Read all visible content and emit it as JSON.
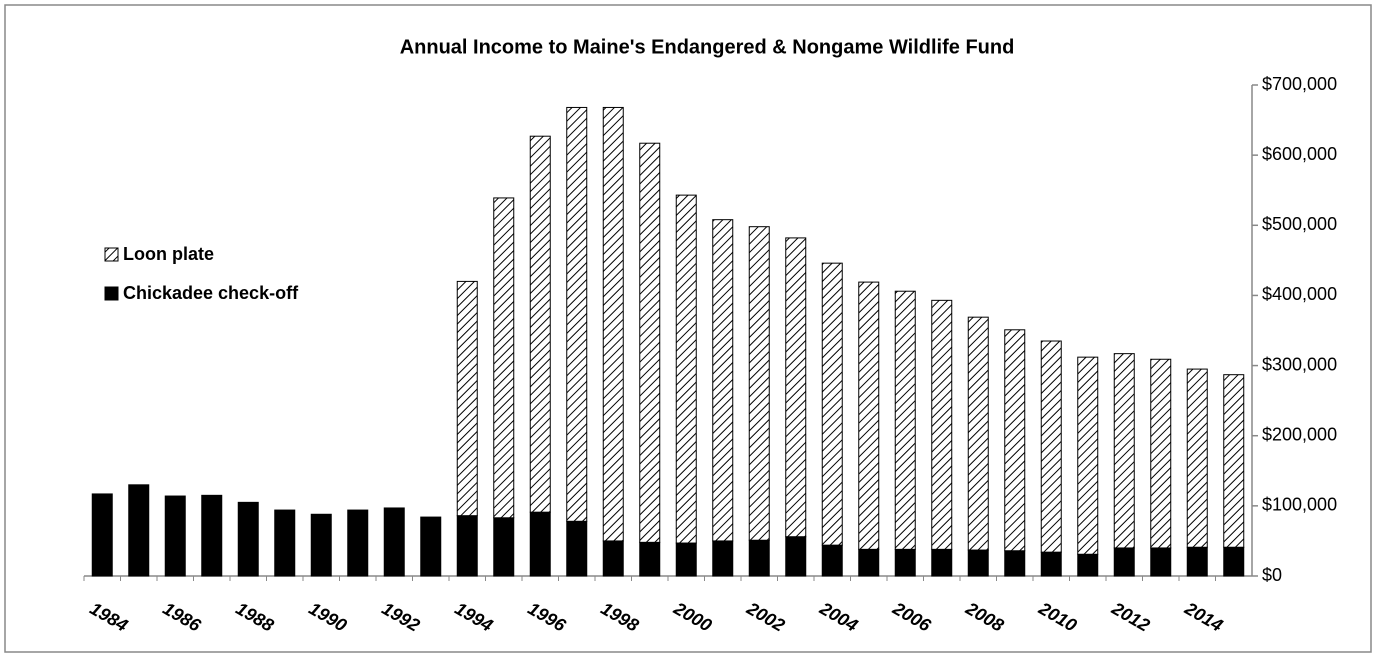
{
  "chart_data": {
    "type": "stacked_bar",
    "title": "Annual Income to Maine's Endangered & Nongame Wildlife Fund",
    "categories": [
      "1984",
      null,
      "1986",
      null,
      "1988",
      null,
      "1990",
      null,
      "1992",
      null,
      "1994",
      null,
      "1996",
      null,
      "1998",
      null,
      "2000",
      null,
      "2002",
      null,
      "2004",
      null,
      "2006",
      null,
      "2008",
      null,
      "2010",
      null,
      "2012",
      null,
      "2014",
      null
    ],
    "series": [
      {
        "name": "Chickadee check-off",
        "color": "#000000",
        "pattern": "solid",
        "values": [
          117000,
          130000,
          114000,
          115000,
          105000,
          94000,
          88000,
          94000,
          97000,
          84000,
          86000,
          83000,
          91000,
          78000,
          50000,
          48000,
          47000,
          50000,
          51000,
          56000,
          44000,
          38000,
          38000,
          38000,
          37000,
          36000,
          34000,
          31000,
          40000,
          40000,
          41000,
          41000
        ]
      },
      {
        "name": "Loon plate",
        "color": "#000000",
        "pattern": "hatch",
        "values": [
          null,
          null,
          null,
          null,
          null,
          null,
          null,
          null,
          null,
          null,
          334000,
          456000,
          536000,
          590000,
          618000,
          569000,
          496000,
          458000,
          447000,
          426000,
          402000,
          381000,
          368000,
          355000,
          332000,
          315000,
          301000,
          281000,
          277000,
          269000,
          254000,
          246000
        ]
      }
    ],
    "ylim": [
      0,
      700000
    ],
    "yticks": [
      {
        "value": 0,
        "label": "$0"
      },
      {
        "value": 100000,
        "label": "$100,000"
      },
      {
        "value": 200000,
        "label": "$200,000"
      },
      {
        "value": 300000,
        "label": "$300,000"
      },
      {
        "value": 400000,
        "label": "$400,000"
      },
      {
        "value": 500000,
        "label": "$500,000"
      },
      {
        "value": 600000,
        "label": "$600,000"
      },
      {
        "value": 700000,
        "label": "$700,000"
      }
    ],
    "y_axis_side": "right",
    "grid": false,
    "legend": "left"
  }
}
